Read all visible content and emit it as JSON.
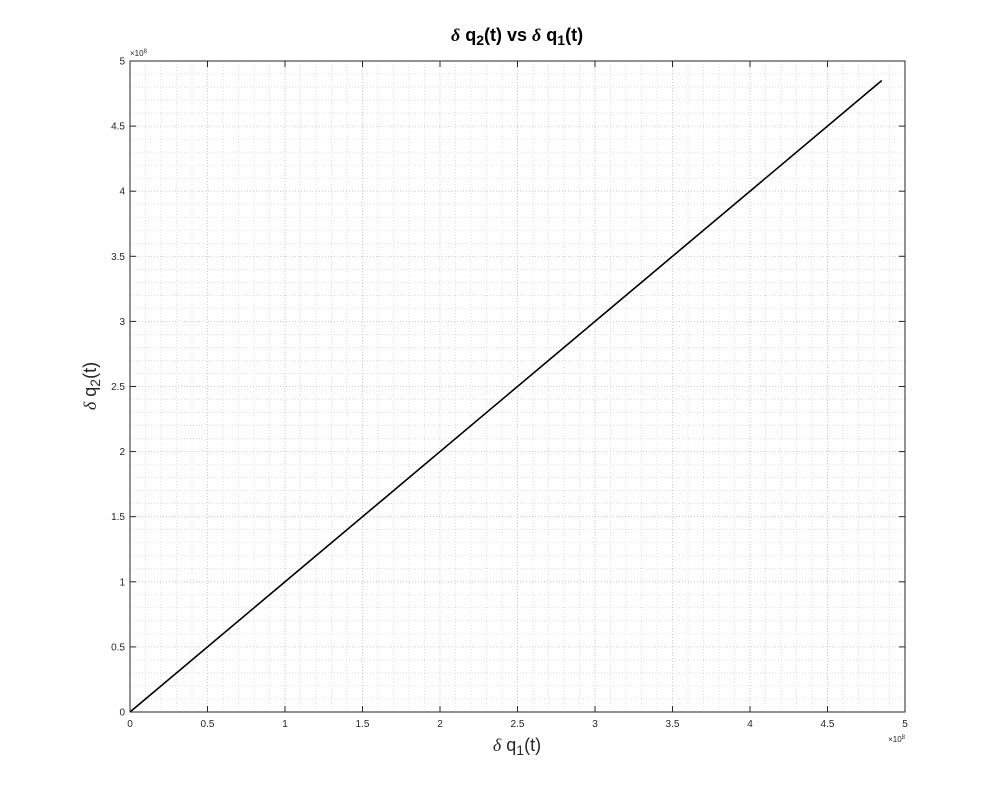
{
  "chart_data": {
    "type": "line",
    "title": {
      "delta": "δ",
      "q_a": "q",
      "sub_a": "2",
      "paren_a": "(t)",
      "vs": "vs",
      "delta_b": "δ",
      "q_b": "q",
      "sub_b": "1",
      "paren_b": "(t)"
    },
    "xlabel": {
      "delta": "δ",
      "q": "q",
      "sub": "1",
      "paren": "(t)"
    },
    "ylabel": {
      "delta": "δ",
      "q": "q",
      "sub": "2",
      "paren": "(t)"
    },
    "xlim": [
      0,
      500000000
    ],
    "ylim": [
      0,
      500000000
    ],
    "x_ticks": [
      0,
      0.5,
      1,
      1.5,
      2,
      2.5,
      3,
      3.5,
      4,
      4.5,
      5
    ],
    "y_ticks": [
      0,
      0.5,
      1,
      1.5,
      2,
      2.5,
      3,
      3.5,
      4,
      4.5,
      5
    ],
    "x_tick_labels": [
      "0",
      "0.5",
      "1",
      "1.5",
      "2",
      "2.5",
      "3",
      "3.5",
      "4",
      "4.5",
      "5"
    ],
    "y_tick_labels": [
      "0",
      "0.5",
      "1",
      "1.5",
      "2",
      "2.5",
      "3",
      "3.5",
      "4",
      "4.5",
      "5"
    ],
    "axis_exponent": {
      "prefix": "×10",
      "power": "8"
    },
    "tick_scale": 100000000,
    "grid": true,
    "minor_grid": true,
    "series": [
      {
        "color": "#000000",
        "x": [
          0,
          485000000
        ],
        "y": [
          0,
          485000000
        ]
      }
    ]
  }
}
